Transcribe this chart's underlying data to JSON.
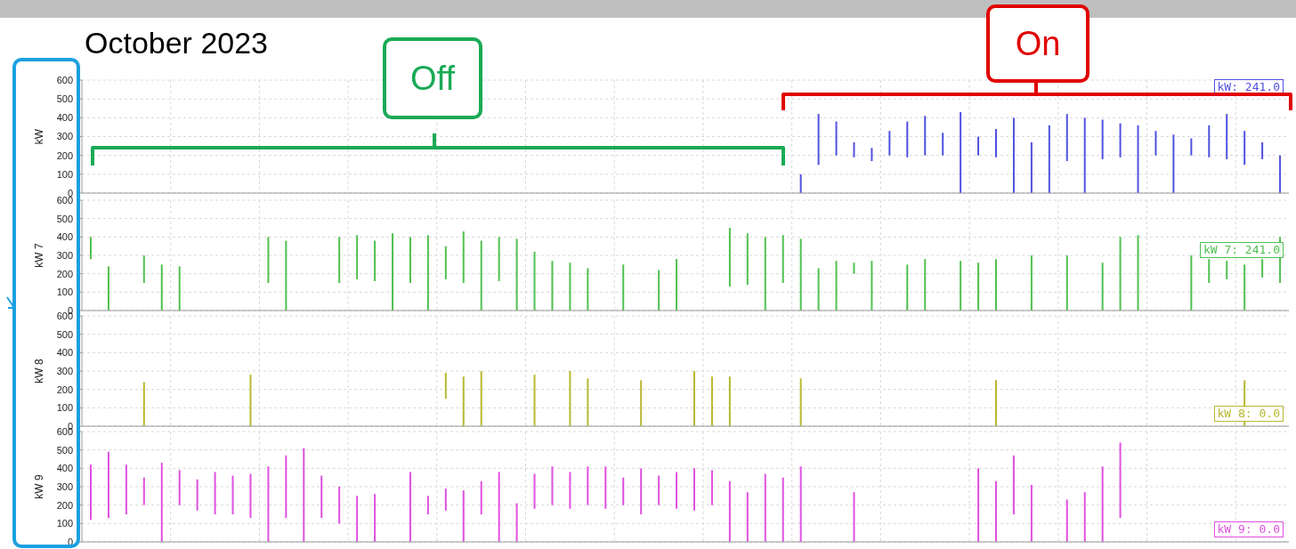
{
  "chart_data": [
    {
      "type": "bar",
      "title": "October 2023",
      "ylabel": "kW",
      "color": "#5050e0",
      "ylim": [
        0,
        600
      ],
      "yticks": [
        0,
        100,
        200,
        300,
        400,
        500,
        600
      ],
      "grid": true,
      "tick_labels": "y",
      "categories": [
        null,
        null,
        null,
        null,
        null,
        null,
        null,
        null,
        null,
        null,
        null,
        null,
        null,
        null,
        null,
        null,
        null,
        null,
        null,
        null,
        null,
        null,
        null,
        null,
        null,
        null,
        null,
        null,
        null,
        null,
        null,
        null,
        null,
        null,
        null,
        null,
        null,
        null,
        null,
        null,
        null,
        null,
        null,
        null,
        null,
        null,
        null,
        null,
        null,
        null,
        null,
        null,
        null,
        null,
        null,
        null,
        null,
        null,
        null,
        null,
        null,
        null,
        null,
        null,
        null,
        null,
        null,
        null
      ],
      "values": [
        null,
        null,
        null,
        null,
        null,
        null,
        null,
        null,
        null,
        null,
        null,
        null,
        null,
        null,
        null,
        null,
        null,
        null,
        null,
        null,
        null,
        null,
        null,
        null,
        null,
        null,
        null,
        null,
        null,
        null,
        null,
        null,
        null,
        null,
        null,
        null,
        null,
        null,
        null,
        null,
        100,
        270,
        180,
        80,
        70,
        130,
        190,
        210,
        120,
        430,
        100,
        150,
        400,
        270,
        360,
        250,
        400,
        210,
        180,
        360,
        130,
        310,
        90,
        170,
        240,
        180,
        90,
        200
      ],
      "base": [
        null,
        null,
        null,
        null,
        null,
        null,
        null,
        null,
        null,
        null,
        null,
        null,
        null,
        null,
        null,
        null,
        null,
        null,
        null,
        null,
        null,
        null,
        null,
        null,
        null,
        null,
        null,
        null,
        null,
        null,
        null,
        null,
        null,
        null,
        null,
        null,
        null,
        null,
        null,
        null,
        0,
        150,
        200,
        190,
        170,
        200,
        190,
        200,
        200,
        0,
        200,
        190,
        0,
        0,
        0,
        170,
        0,
        180,
        190,
        0,
        200,
        0,
        200,
        190,
        180,
        150,
        180,
        0
      ],
      "annotations": [
        "Off",
        "On",
        "kW: 241.0"
      ]
    },
    {
      "type": "bar",
      "ylabel": "kW 7",
      "color": "#50c050",
      "ylim": [
        0,
        600
      ],
      "yticks": [
        0,
        100,
        200,
        300,
        400,
        500,
        600
      ],
      "grid": true,
      "tick_labels": "y",
      "categories": [
        null,
        null,
        null,
        null,
        null,
        null,
        null,
        null,
        null,
        null,
        null,
        null,
        null,
        null,
        null,
        null,
        null,
        null,
        null,
        null,
        null,
        null,
        null,
        null,
        null,
        null,
        null,
        null,
        null,
        null,
        null,
        null,
        null,
        null,
        null,
        null,
        null,
        null,
        null,
        null,
        null,
        null,
        null,
        null,
        null,
        null,
        null,
        null,
        null,
        null,
        null,
        null,
        null,
        null,
        null,
        null,
        null,
        null,
        null,
        null,
        null,
        null,
        null,
        null,
        null,
        null,
        null,
        null
      ],
      "values": [
        120,
        240,
        null,
        150,
        250,
        240,
        null,
        null,
        null,
        null,
        250,
        380,
        null,
        null,
        250,
        240,
        220,
        420,
        250,
        410,
        180,
        280,
        380,
        240,
        390,
        320,
        270,
        260,
        230,
        null,
        250,
        null,
        220,
        280,
        null,
        null,
        320,
        280,
        400,
        260,
        390,
        230,
        270,
        60,
        270,
        null,
        250,
        280,
        null,
        270,
        260,
        280,
        null,
        300,
        null,
        300,
        null,
        260,
        400,
        410,
        null,
        null,
        300,
        130,
        100,
        250,
        100,
        250
      ],
      "base": [
        280,
        0,
        null,
        150,
        0,
        0,
        null,
        null,
        null,
        null,
        150,
        0,
        null,
        null,
        150,
        170,
        160,
        0,
        150,
        0,
        170,
        150,
        0,
        160,
        0,
        0,
        0,
        0,
        0,
        null,
        0,
        null,
        0,
        0,
        null,
        null,
        130,
        140,
        0,
        150,
        0,
        0,
        0,
        200,
        0,
        null,
        0,
        0,
        null,
        0,
        0,
        0,
        null,
        0,
        null,
        0,
        null,
        0,
        0,
        0,
        null,
        null,
        0,
        150,
        170,
        0,
        180,
        150
      ],
      "annotations": [
        "kW 7: 241.0"
      ]
    },
    {
      "type": "bar",
      "ylabel": "kW 8",
      "color": "#b8b830",
      "ylim": [
        0,
        600
      ],
      "yticks": [
        0,
        100,
        200,
        300,
        400,
        500,
        600
      ],
      "grid": true,
      "tick_labels": "y",
      "categories": [
        null,
        null,
        null,
        null,
        null,
        null,
        null,
        null,
        null,
        null,
        null,
        null,
        null,
        null,
        null,
        null,
        null,
        null,
        null,
        null,
        null,
        null,
        null,
        null,
        null,
        null,
        null,
        null,
        null,
        null,
        null,
        null,
        null,
        null,
        null,
        null,
        null,
        null,
        null,
        null,
        null,
        null,
        null,
        null,
        null,
        null,
        null,
        null,
        null,
        null,
        null,
        null,
        null,
        null,
        null,
        null,
        null,
        null,
        null,
        null,
        null,
        null,
        null,
        null,
        null,
        null,
        null,
        null
      ],
      "values": [
        null,
        null,
        null,
        240,
        null,
        null,
        null,
        null,
        null,
        280,
        null,
        null,
        null,
        null,
        null,
        null,
        null,
        null,
        null,
        null,
        140,
        270,
        300,
        null,
        null,
        280,
        null,
        300,
        260,
        null,
        null,
        250,
        null,
        null,
        300,
        270,
        270,
        null,
        null,
        null,
        260,
        null,
        null,
        null,
        null,
        null,
        null,
        null,
        null,
        null,
        null,
        250,
        null,
        null,
        null,
        null,
        null,
        null,
        null,
        null,
        null,
        null,
        null,
        null,
        null,
        250,
        null,
        null
      ],
      "base": [
        null,
        null,
        null,
        0,
        null,
        null,
        null,
        null,
        null,
        0,
        null,
        null,
        null,
        null,
        null,
        null,
        null,
        null,
        null,
        null,
        150,
        0,
        0,
        null,
        null,
        0,
        null,
        0,
        0,
        null,
        null,
        0,
        null,
        null,
        0,
        0,
        0,
        null,
        null,
        null,
        0,
        null,
        null,
        null,
        null,
        null,
        null,
        null,
        null,
        null,
        null,
        0,
        null,
        null,
        null,
        null,
        null,
        null,
        null,
        null,
        null,
        null,
        null,
        null,
        null,
        0,
        null,
        null
      ],
      "annotations": [
        "kW 8: 0.0"
      ]
    },
    {
      "type": "bar",
      "ylabel": "kW 9",
      "color": "#e050e0",
      "ylim": [
        0,
        600
      ],
      "yticks": [
        0,
        100,
        200,
        300,
        400,
        500,
        600
      ],
      "grid": true,
      "tick_labels": "y",
      "categories": [
        null,
        null,
        null,
        null,
        null,
        null,
        null,
        null,
        null,
        null,
        null,
        null,
        null,
        null,
        null,
        null,
        null,
        null,
        null,
        null,
        null,
        null,
        null,
        null,
        null,
        null,
        null,
        null,
        null,
        null,
        null,
        null,
        null,
        null,
        null,
        null,
        null,
        null,
        null,
        null,
        null,
        null,
        null,
        null,
        null,
        null,
        null,
        null,
        null,
        null,
        null,
        null,
        null,
        null,
        null,
        null,
        null,
        null,
        null,
        null,
        null,
        null,
        null,
        null,
        null,
        null,
        null,
        null
      ],
      "values": [
        300,
        360,
        270,
        150,
        430,
        190,
        170,
        230,
        210,
        240,
        410,
        340,
        510,
        230,
        200,
        250,
        260,
        null,
        380,
        100,
        120,
        280,
        180,
        380,
        210,
        190,
        210,
        200,
        210,
        230,
        150,
        250,
        160,
        200,
        230,
        190,
        330,
        270,
        370,
        350,
        410,
        null,
        null,
        270,
        null,
        null,
        null,
        null,
        null,
        null,
        400,
        330,
        320,
        310,
        null,
        230,
        270,
        410,
        410,
        null,
        null,
        null,
        null,
        null,
        null,
        null,
        null,
        null
      ],
      "base": [
        120,
        130,
        150,
        200,
        0,
        200,
        170,
        150,
        150,
        130,
        0,
        130,
        0,
        130,
        100,
        0,
        0,
        null,
        0,
        150,
        170,
        0,
        150,
        0,
        0,
        180,
        200,
        180,
        200,
        180,
        200,
        150,
        200,
        180,
        170,
        200,
        0,
        0,
        0,
        0,
        0,
        null,
        null,
        0,
        null,
        null,
        null,
        null,
        null,
        null,
        0,
        0,
        150,
        0,
        null,
        0,
        0,
        0,
        130,
        null,
        null,
        null,
        null,
        null,
        null,
        null,
        null,
        null
      ],
      "annotations": [
        "kW 9: 0.0"
      ]
    }
  ]
}
